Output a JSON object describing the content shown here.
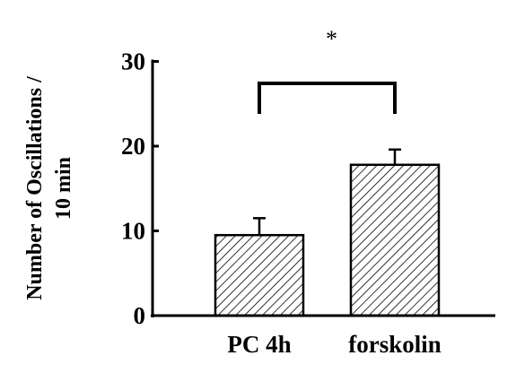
{
  "chart_data": {
    "type": "bar",
    "categories": [
      "PC 4h",
      "forskolin"
    ],
    "values": [
      9.5,
      17.8
    ],
    "errors": [
      2.0,
      1.8
    ],
    "ylabel_lines": [
      "Number of Oscillations /",
      "10 min"
    ],
    "ylim": [
      0,
      30
    ],
    "yticks": [
      0,
      10,
      20,
      30
    ],
    "bar_fill": "hatched",
    "significance": {
      "between": [
        0,
        1
      ],
      "label": "*"
    },
    "grid": false,
    "legend": "none"
  }
}
